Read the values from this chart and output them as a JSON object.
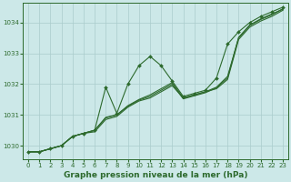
{
  "background_color": "#cce8e8",
  "grid_color": "#aacccc",
  "line_color": "#2d6a2d",
  "title": "Graphe pression niveau de la mer (hPa)",
  "xlim": [
    -0.5,
    23.5
  ],
  "ylim": [
    1029.55,
    1034.65
  ],
  "yticks": [
    1030,
    1031,
    1032,
    1033,
    1034
  ],
  "xticks": [
    0,
    1,
    2,
    3,
    4,
    5,
    6,
    7,
    8,
    9,
    10,
    11,
    12,
    13,
    14,
    15,
    16,
    17,
    18,
    19,
    20,
    21,
    22,
    23
  ],
  "s_main": [
    1029.8,
    1029.8,
    1029.9,
    1030.0,
    1030.3,
    1030.4,
    1030.5,
    1031.9,
    1031.05,
    1032.0,
    1032.6,
    1032.9,
    1032.6,
    1032.1,
    1031.6,
    1031.7,
    1031.8,
    1032.2,
    1033.3,
    1033.7,
    1034.0,
    1034.2,
    1034.35,
    1034.5
  ],
  "s2": [
    1029.8,
    1029.8,
    1029.9,
    1030.0,
    1030.3,
    1030.4,
    1030.45,
    1030.85,
    1030.95,
    1031.25,
    1031.45,
    1031.55,
    1031.75,
    1031.95,
    1031.55,
    1031.65,
    1031.75,
    1031.85,
    1032.15,
    1033.45,
    1033.85,
    1034.05,
    1034.2,
    1034.4
  ],
  "s3": [
    1029.8,
    1029.8,
    1029.9,
    1030.0,
    1030.3,
    1030.4,
    1030.5,
    1030.9,
    1031.0,
    1031.3,
    1031.5,
    1031.65,
    1031.85,
    1032.05,
    1031.55,
    1031.65,
    1031.75,
    1031.9,
    1032.25,
    1033.5,
    1033.9,
    1034.1,
    1034.25,
    1034.45
  ],
  "s4": [
    1029.8,
    1029.8,
    1029.9,
    1030.0,
    1030.3,
    1030.4,
    1030.5,
    1030.92,
    1031.0,
    1031.28,
    1031.48,
    1031.6,
    1031.8,
    1032.0,
    1031.52,
    1031.62,
    1031.72,
    1031.88,
    1032.2,
    1033.52,
    1033.92,
    1034.12,
    1034.28,
    1034.43
  ],
  "title_fontsize": 6.5,
  "tick_fontsize": 5.0
}
